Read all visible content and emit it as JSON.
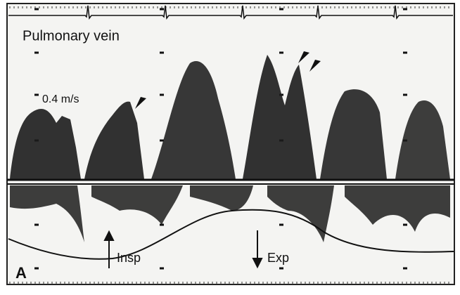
{
  "labels": {
    "title": "Pulmonary vein",
    "scale": "0.4 m/s",
    "inspiration": "Insp",
    "expiration": "Exp",
    "panel": "A"
  }
}
